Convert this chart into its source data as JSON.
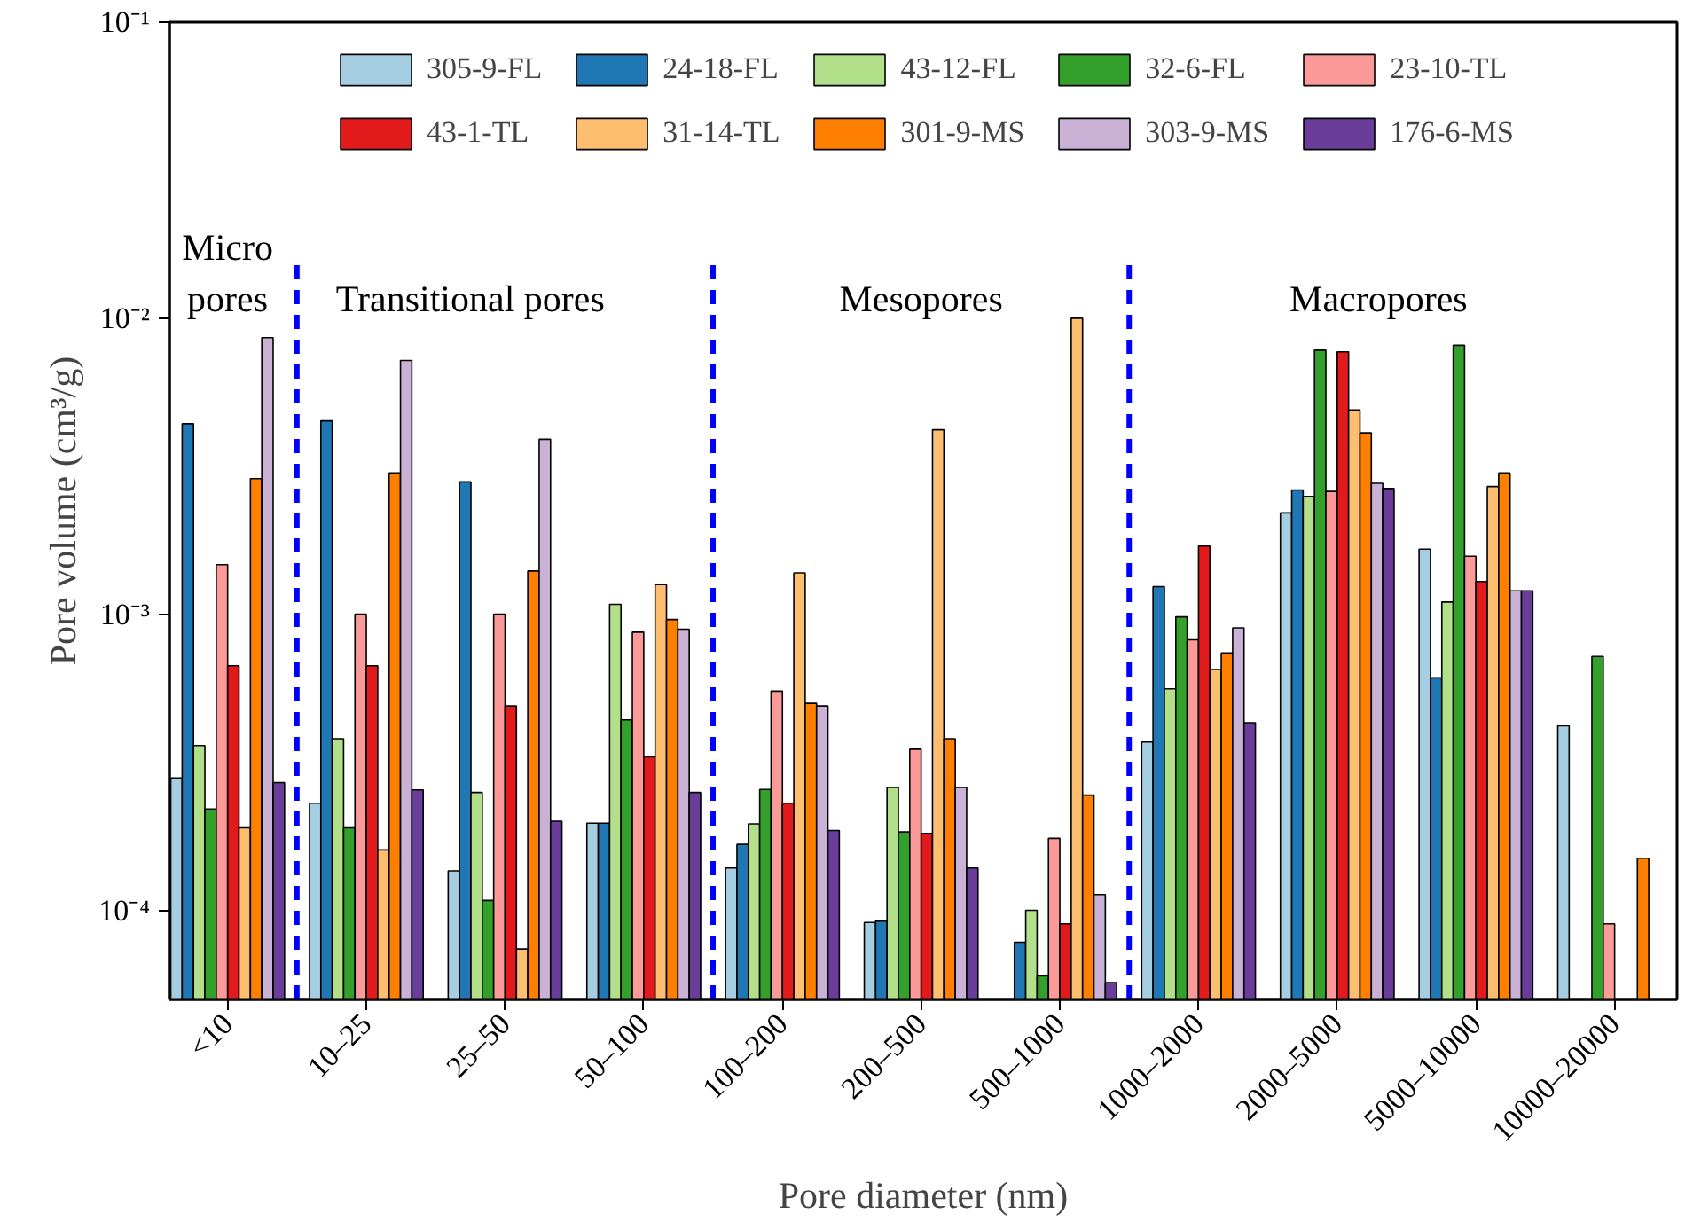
{
  "chart_data": {
    "type": "bar",
    "xlabel": "Pore diameter (nm)",
    "ylabel": "Pore volume (cm³/g)",
    "categories": [
      "<10",
      "10–25",
      "25–50",
      "50–100",
      "100–200",
      "200–500",
      "500–1000",
      "1000–2000",
      "2000–5000",
      "5000–10000",
      "10000–20000"
    ],
    "log": "y",
    "ylim": [
      5e-05,
      0.1
    ],
    "yticks": [
      {
        "value": 0.0001,
        "label": "10⁻⁴"
      },
      {
        "value": 0.001,
        "label": "10⁻³"
      },
      {
        "value": 0.01,
        "label": "10⁻²"
      },
      {
        "value": 0.1,
        "label": "10⁻¹"
      }
    ],
    "grid": false,
    "legend": "top",
    "series": [
      {
        "name": "305-9-FL",
        "color": "#a6cee3",
        "values": [
          0.00028,
          0.00023,
          0.000136,
          0.000197,
          0.000139,
          9.1e-05,
          null,
          0.00037,
          0.0022,
          0.00166,
          0.00042
        ]
      },
      {
        "name": "24-18-FL",
        "color": "#1f78b4",
        "values": [
          0.0044,
          0.0045,
          0.0028,
          0.000197,
          0.000167,
          9.2e-05,
          7.8e-05,
          0.00124,
          0.00263,
          0.00061,
          null
        ]
      },
      {
        "name": "43-12-FL",
        "color": "#b2df8a",
        "values": [
          0.00036,
          0.00038,
          0.00025,
          0.00108,
          0.000196,
          0.00026,
          0.0001,
          0.00056,
          0.0025,
          0.0011,
          null
        ]
      },
      {
        "name": "32-6-FL",
        "color": "#33a02c",
        "values": [
          0.00022,
          0.00019,
          0.000108,
          0.00044,
          0.000256,
          0.000184,
          6e-05,
          0.00098,
          0.0078,
          0.0081,
          0.00072
        ]
      },
      {
        "name": "23-10-TL",
        "color": "#fb9a99",
        "values": [
          0.00147,
          0.001,
          0.001,
          0.00087,
          0.00055,
          0.00035,
          0.000175,
          0.00082,
          0.0026,
          0.00157,
          9e-05
        ]
      },
      {
        "name": "43-1-TL",
        "color": "#e31a1c",
        "values": [
          0.00067,
          0.00067,
          0.00049,
          0.00033,
          0.00023,
          0.000182,
          9e-05,
          0.0017,
          0.0077,
          0.00129,
          null
        ]
      },
      {
        "name": "31-14-TL",
        "color": "#fdbf6f",
        "values": [
          0.00019,
          0.00016,
          7.4e-05,
          0.00126,
          0.00138,
          0.0042,
          0.01,
          0.00065,
          0.0049,
          0.0027,
          null
        ]
      },
      {
        "name": "301-9-MS",
        "color": "#ff7f00",
        "values": [
          0.00287,
          0.003,
          0.0014,
          0.00096,
          0.0005,
          0.00038,
          0.000245,
          0.00074,
          0.0041,
          0.003,
          0.00015
        ]
      },
      {
        "name": "303-9-MS",
        "color": "#cab2d6",
        "values": [
          0.0086,
          0.0072,
          0.0039,
          0.00089,
          0.00049,
          0.00026,
          0.000113,
          0.0009,
          0.00277,
          0.0012,
          null
        ]
      },
      {
        "name": "176-6-MS",
        "color": "#6a3d9a",
        "values": [
          0.00027,
          0.000255,
          0.0002,
          0.00025,
          0.000186,
          0.000139,
          5.7e-05,
          0.00043,
          0.00266,
          0.0012,
          null
        ]
      }
    ],
    "annotations": [
      "Micro\npores",
      "Transitional pores",
      "Mesopores",
      "Macropores"
    ]
  }
}
